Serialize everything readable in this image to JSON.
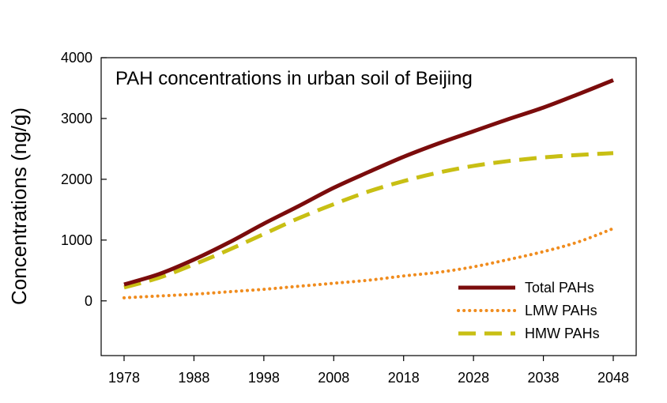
{
  "chart_data": {
    "type": "line",
    "title": "PAH concentrations in urban soil of Beijing",
    "xlabel": "",
    "ylabel": "Concentrations (ng/g)",
    "xlim": [
      1978,
      2048
    ],
    "ylim": [
      -900,
      4000
    ],
    "x_ticks": [
      1978,
      1988,
      1998,
      2008,
      2018,
      2028,
      2038,
      2048
    ],
    "x_tick_labels": [
      "1978",
      "1988",
      "1998",
      "2008",
      "2018",
      "2028",
      "2038",
      "2048"
    ],
    "y_ticks": [
      0,
      1000,
      2000,
      3000,
      4000
    ],
    "y_tick_labels": [
      "0",
      "1000",
      "2000",
      "3000",
      "4000"
    ],
    "legend_position": "bottom-right",
    "x": [
      1978,
      1983,
      1988,
      1993,
      1998,
      2003,
      2008,
      2013,
      2018,
      2023,
      2028,
      2033,
      2038,
      2043,
      2048
    ],
    "series": [
      {
        "name": "Total PAHs",
        "color": "#7b0c0c",
        "style": "solid",
        "values": [
          270,
          440,
          680,
          960,
          1270,
          1560,
          1860,
          2120,
          2370,
          2590,
          2790,
          2990,
          3180,
          3400,
          3630
        ]
      },
      {
        "name": "LMW PAHs",
        "color": "#f08c1e",
        "style": "dotted",
        "values": [
          50,
          80,
          110,
          150,
          190,
          240,
          290,
          340,
          410,
          470,
          560,
          680,
          810,
          970,
          1190
        ]
      },
      {
        "name": "HMW PAHs",
        "color": "#c8bf14",
        "style": "dashed",
        "values": [
          220,
          380,
          600,
          840,
          1100,
          1360,
          1590,
          1800,
          1970,
          2110,
          2220,
          2300,
          2360,
          2400,
          2430
        ]
      }
    ]
  }
}
